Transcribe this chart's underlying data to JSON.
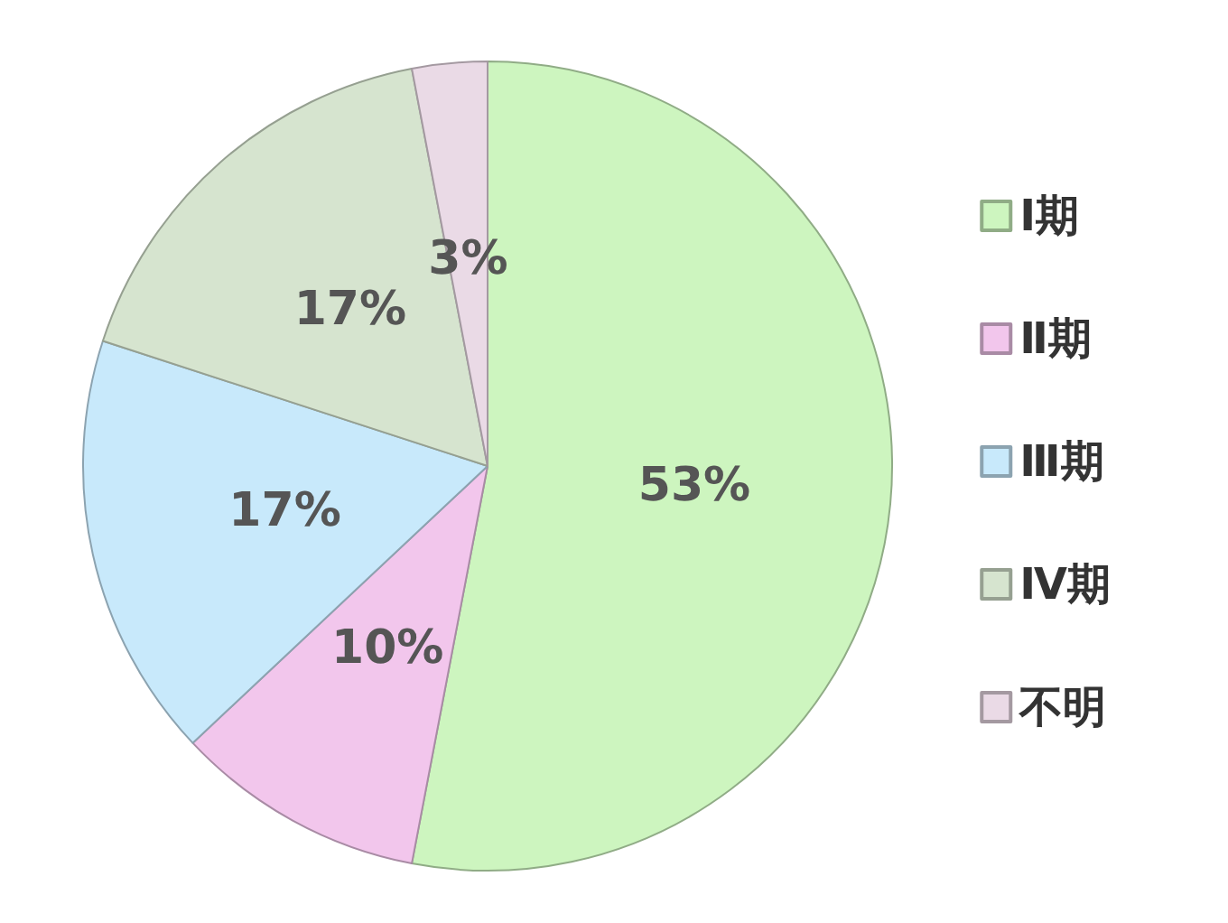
{
  "chart_data": {
    "type": "pie",
    "categories": [
      "Ⅰ期",
      "Ⅱ期",
      "Ⅲ期",
      "Ⅳ期",
      "不明"
    ],
    "values": [
      53,
      10,
      17,
      17,
      3
    ],
    "value_labels": [
      "53%",
      "10%",
      "17%",
      "17%",
      "3%"
    ],
    "colors": [
      "#cdf5bf",
      "#f2c6ec",
      "#c8e9fb",
      "#d6e4cf",
      "#eadaE6"
    ],
    "legend": "right"
  }
}
